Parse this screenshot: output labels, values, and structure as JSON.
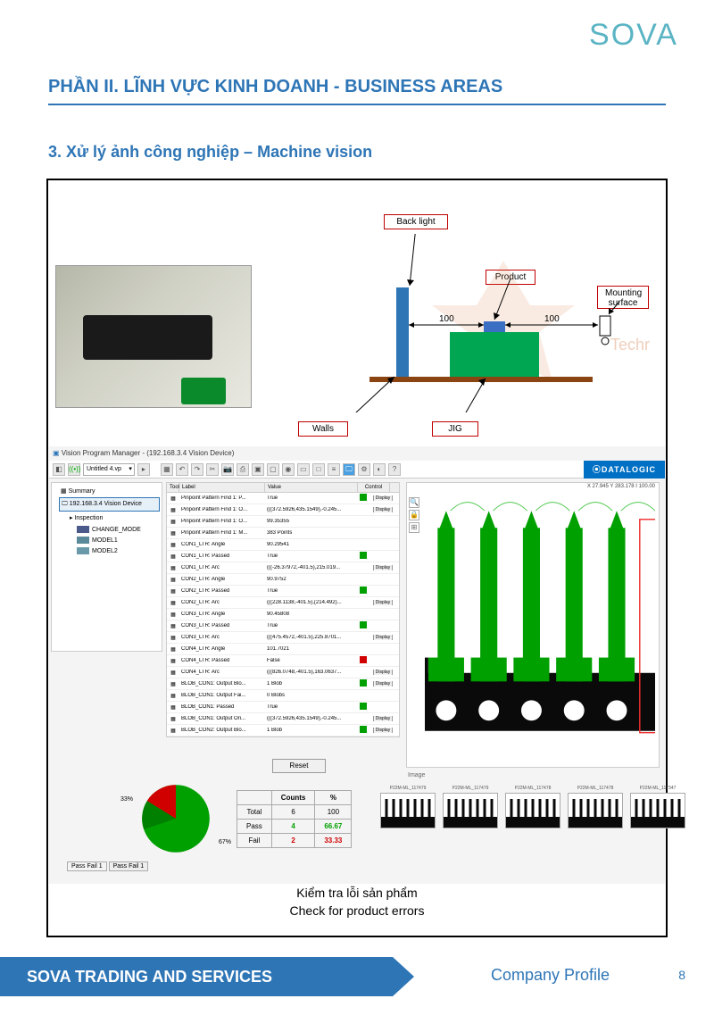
{
  "logo": "SOVA",
  "section_header": "PHẦN II. LĨNH VỰC KINH DOANH  -  BUSINESS AREAS",
  "subsection": "3. Xử lý ảnh công nghiệp – Machine vision",
  "diagram": {
    "backlight": "Back light",
    "product": "Product",
    "mounting": "Mounting surface",
    "walls": "Walls",
    "jig": "JIG",
    "dist1": "100",
    "dist2": "100",
    "watermark": "Techr",
    "colors": {
      "backlight_rect": "#2e75b6",
      "jig_rect": "#00a651",
      "product_rect": "#3b6fc4",
      "base_line": "#8b4513",
      "label_border": "#c00000"
    }
  },
  "screenshot": {
    "title": "Vision Program Manager - (192.168.3.4 Vision Device)",
    "dropdown": "Untitled 4.vp",
    "brand": "⦿DATALOGIC",
    "coords": "X 27.945  Y 283.178  I 100.00",
    "tree": {
      "summary": "Summary",
      "device": "192.168.3.4 Vision Device",
      "inspection": "Inspection",
      "change_model": "CHANGE_MODE",
      "model1": "MODEL1",
      "model2": "MODEL2",
      "swatch1": "#4a5a8a",
      "swatch2": "#5a8a9a",
      "swatch3": "#6a9aaa"
    },
    "table_head": {
      "tool": "Tool",
      "label": "Label",
      "value": "Value",
      "control": "Control"
    },
    "rows": [
      {
        "label": "Pinpoint Pattern Find 1: P...",
        "value": "True",
        "status": "green",
        "display": true
      },
      {
        "label": "Pinpoint Pattern Find 1: O...",
        "value": "(((372.5926,435.1549),-0.245...",
        "status": "",
        "display": true
      },
      {
        "label": "Pinpoint Pattern Find 1: O...",
        "value": "99.35355",
        "status": "",
        "display": false
      },
      {
        "label": "Pinpoint Pattern Find 1: M...",
        "value": "383 Points",
        "status": "",
        "display": false
      },
      {
        "label": "CON1_LTR: Angle",
        "value": "90.29541",
        "status": "",
        "display": false
      },
      {
        "label": "CON1_LTR: Passed",
        "value": "True",
        "status": "green",
        "display": false
      },
      {
        "label": "CON1_LTR: Arc",
        "value": "(((-26.37972,-401.5),215.019...",
        "status": "",
        "display": true
      },
      {
        "label": "CON2_LTR: Angle",
        "value": "90.9752",
        "status": "",
        "display": false
      },
      {
        "label": "CON2_LTR: Passed",
        "value": "True",
        "status": "green",
        "display": false
      },
      {
        "label": "CON2_LTR: Arc",
        "value": "(((228.1138,-401.5),(214.492)...",
        "status": "",
        "display": true
      },
      {
        "label": "CON3_LTR: Angle",
        "value": "90.45808",
        "status": "",
        "display": false
      },
      {
        "label": "CON3_LTR: Passed",
        "value": "True",
        "status": "green",
        "display": false
      },
      {
        "label": "CON3_LTR: Arc",
        "value": "(((475.4572,-401.5),225.8701...",
        "status": "",
        "display": true
      },
      {
        "label": "CON4_LTR: Angle",
        "value": "101.7021",
        "status": "",
        "display": false
      },
      {
        "label": "CON4_LTR: Passed",
        "value": "False",
        "status": "red",
        "display": false
      },
      {
        "label": "CON4_LTR: Arc",
        "value": "(((826.0748,-401.5),163.0637...",
        "status": "",
        "display": true
      },
      {
        "label": "BLOB_CON1: Output Blo...",
        "value": "1 Blob",
        "status": "green",
        "display": true
      },
      {
        "label": "BLOB_CON1: Output Fai...",
        "value": "0 Blobs",
        "status": "",
        "display": false
      },
      {
        "label": "BLOB_CON1: Passed",
        "value": "True",
        "status": "green",
        "display": false
      },
      {
        "label": "BLOB_CON1: Output Ori...",
        "value": "(((372.5926,435.1549),-0.245...",
        "status": "",
        "display": true
      },
      {
        "label": "BLOB_CON2: Output Blo...",
        "value": "1 Blob",
        "status": "green",
        "display": true
      }
    ],
    "reset": "Reset",
    "pie": {
      "pct33": "33%",
      "pct67": "67%",
      "pass_color": "#00a000",
      "fail_color": "#d00000",
      "counts_hdr": "Counts",
      "pct_hdr": "%",
      "total_label": "Total",
      "total_count": "6",
      "total_pct": "100",
      "pass_label": "Pass",
      "pass_count": "4",
      "pass_pct": "66.67",
      "fail_label": "Fail",
      "fail_count": "2",
      "fail_pct": "33.33",
      "passfail": "Pass Fail 1",
      "passfail2": "Pass Fail 1"
    },
    "image_label": "Image",
    "thumbs": [
      {
        "label": "P22M-ML_117479"
      },
      {
        "label": "P22M-ML_117479"
      },
      {
        "label": "P22M-ML_117478"
      },
      {
        "label": "P22M-ML_117478"
      },
      {
        "label": "P22M-ML_117347"
      }
    ],
    "vision_colors": {
      "part_green": "#00a000",
      "part_black": "#0a0a0a",
      "outline_red": "#ee3030"
    }
  },
  "caption_vn": "Kiểm tra lỗi sản phẩm",
  "caption_en": "Check for product errors",
  "footer": {
    "company": "SOVA TRADING AND SERVICES",
    "profile": "Company Profile",
    "page": "8"
  }
}
